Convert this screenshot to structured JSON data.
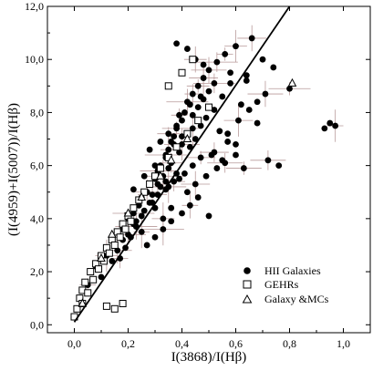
{
  "chart_data": {
    "type": "scatter",
    "title": "",
    "xlabel": "I(3868)/I(Hβ)",
    "ylabel": "(I(4959)+I(5007))/I(Hβ)",
    "xlim": [
      -0.1,
      1.1
    ],
    "ylim": [
      -0.3,
      12.0
    ],
    "x_tick_labels": [
      "0,0",
      "0,2",
      "0,4",
      "0,6",
      "0,8",
      "1,0"
    ],
    "x_tick_values": [
      0.0,
      0.2,
      0.4,
      0.6,
      0.8,
      1.0
    ],
    "y_tick_labels": [
      "0,0",
      "2,0",
      "4,0",
      "6,0",
      "8,0",
      "10,0",
      "12,0"
    ],
    "y_tick_values": [
      0,
      2,
      4,
      6,
      8,
      10,
      12
    ],
    "grid": false,
    "legend_position": "bottom-right",
    "colors": {
      "markers": "#000000",
      "error_bars": "#b89a9a",
      "fit_line": "#000000"
    },
    "fit_line": {
      "x": [
        0.0,
        0.8
      ],
      "y": [
        0.1,
        12.0
      ]
    },
    "series": [
      {
        "name": "HII Galaxies",
        "marker": "filled-circle",
        "x": [
          0.05,
          0.08,
          0.1,
          0.12,
          0.14,
          0.15,
          0.16,
          0.18,
          0.18,
          0.2,
          0.2,
          0.22,
          0.22,
          0.23,
          0.24,
          0.25,
          0.25,
          0.26,
          0.27,
          0.28,
          0.28,
          0.29,
          0.3,
          0.3,
          0.31,
          0.32,
          0.32,
          0.33,
          0.34,
          0.34,
          0.35,
          0.35,
          0.36,
          0.36,
          0.37,
          0.38,
          0.38,
          0.39,
          0.4,
          0.4,
          0.41,
          0.42,
          0.42,
          0.43,
          0.44,
          0.44,
          0.45,
          0.46,
          0.46,
          0.47,
          0.48,
          0.48,
          0.49,
          0.5,
          0.5,
          0.51,
          0.52,
          0.53,
          0.54,
          0.55,
          0.56,
          0.57,
          0.58,
          0.6,
          0.62,
          0.64,
          0.66,
          0.68,
          0.7,
          0.72,
          0.74,
          0.76,
          0.8,
          0.93,
          0.95,
          0.97,
          0.38,
          0.42,
          0.45,
          0.48,
          0.5,
          0.52,
          0.55,
          0.6,
          0.63,
          0.27,
          0.3,
          0.33,
          0.36,
          0.4,
          0.43,
          0.46,
          0.34,
          0.37,
          0.41,
          0.44,
          0.47,
          0.29,
          0.31,
          0.35,
          0.39,
          0.25,
          0.23,
          0.21,
          0.19,
          0.17,
          0.28,
          0.32,
          0.35,
          0.38,
          0.57,
          0.61,
          0.65,
          0.68,
          0.71,
          0.64,
          0.58,
          0.52,
          0.47,
          0.43,
          0.39,
          0.26,
          0.22,
          0.33,
          0.36,
          0.42,
          0.45,
          0.49,
          0.53,
          0.56,
          0.6,
          0.3,
          0.34,
          0.37,
          0.4,
          0.44,
          0.24,
          0.27,
          0.31
        ],
        "y": [
          1.5,
          2.2,
          1.8,
          2.6,
          2.4,
          3.0,
          2.8,
          3.2,
          3.6,
          3.4,
          4.0,
          3.8,
          4.2,
          3.9,
          4.5,
          3.5,
          4.8,
          4.3,
          5.0,
          4.6,
          5.3,
          4.9,
          5.5,
          4.4,
          5.8,
          5.2,
          6.0,
          5.6,
          6.3,
          5.4,
          6.6,
          5.9,
          6.9,
          6.1,
          7.1,
          5.7,
          7.4,
          6.5,
          7.7,
          6.8,
          8.0,
          7.2,
          8.4,
          6.7,
          7.9,
          8.7,
          7.0,
          8.2,
          9.0,
          7.5,
          8.5,
          9.3,
          7.8,
          8.8,
          9.6,
          6.4,
          8.1,
          9.9,
          7.3,
          8.6,
          10.2,
          6.9,
          9.1,
          10.5,
          8.3,
          9.4,
          10.8,
          7.6,
          10.0,
          6.2,
          9.7,
          6.0,
          8.9,
          7.4,
          7.6,
          7.5,
          10.6,
          10.4,
          10.0,
          9.8,
          4.1,
          6.5,
          6.2,
          6.8,
          5.9,
          3.0,
          3.3,
          3.6,
          3.9,
          4.2,
          4.5,
          4.8,
          5.1,
          5.4,
          5.7,
          6.0,
          6.3,
          4.6,
          4.9,
          5.2,
          5.5,
          4.1,
          3.7,
          3.3,
          2.9,
          2.5,
          6.6,
          6.9,
          7.2,
          7.5,
          7.2,
          7.7,
          8.1,
          8.4,
          8.7,
          9.2,
          9.5,
          9.1,
          8.6,
          8.3,
          7.9,
          5.6,
          5.1,
          4.0,
          4.4,
          5.0,
          5.3,
          5.6,
          5.9,
          6.1,
          6.4,
          6.0,
          6.4,
          6.8,
          7.1,
          7.4,
          4.7,
          5.0,
          5.3
        ]
      },
      {
        "name": "GEHRs",
        "marker": "open-square",
        "x": [
          0.0,
          0.01,
          0.02,
          0.03,
          0.03,
          0.04,
          0.05,
          0.06,
          0.07,
          0.08,
          0.09,
          0.1,
          0.11,
          0.12,
          0.13,
          0.14,
          0.15,
          0.16,
          0.17,
          0.18,
          0.19,
          0.2,
          0.21,
          0.22,
          0.24,
          0.26,
          0.28,
          0.3,
          0.32,
          0.35,
          0.38,
          0.42,
          0.46,
          0.5,
          0.15,
          0.18,
          0.12,
          0.35,
          0.4,
          0.44
        ],
        "y": [
          0.3,
          0.6,
          1.0,
          0.8,
          1.3,
          1.6,
          1.2,
          2.0,
          1.7,
          2.3,
          2.1,
          2.6,
          2.4,
          2.9,
          2.7,
          3.2,
          3.0,
          3.5,
          3.3,
          3.8,
          3.6,
          4.1,
          3.9,
          4.4,
          4.7,
          5.0,
          5.3,
          5.6,
          5.9,
          6.3,
          6.7,
          7.2,
          7.7,
          8.2,
          0.6,
          0.8,
          0.7,
          9.0,
          9.5,
          10.0
        ]
      },
      {
        "name": "Galaxy &MCs",
        "marker": "open-triangle",
        "x": [
          0.03,
          0.1,
          0.14,
          0.2,
          0.25,
          0.32,
          0.36,
          0.42,
          0.81
        ],
        "y": [
          0.8,
          2.5,
          3.4,
          4.2,
          4.8,
          5.6,
          6.2,
          7.0,
          9.1
        ]
      }
    ]
  }
}
